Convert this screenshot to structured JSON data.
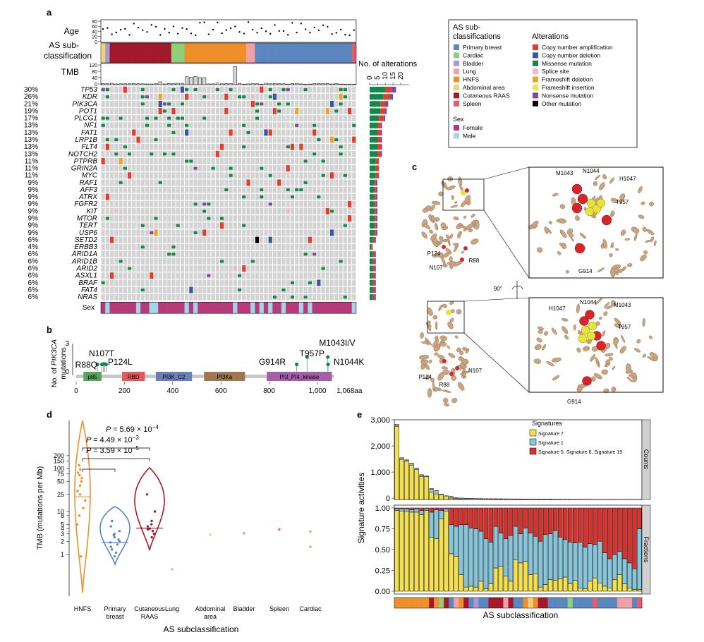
{
  "panel_letters": [
    "a",
    "b",
    "c",
    "d",
    "e"
  ],
  "colors": {
    "primary_breast": "#5b86c0",
    "cardiac": "#8fcf7a",
    "bladder": "#a899d0",
    "lung": "#f2a0a8",
    "hnfs": "#ef8f2a",
    "abdominal": "#efd27a",
    "cutaneous": "#a3182b",
    "spleen": "#e05f6b",
    "amp": "#e23d2d",
    "del": "#3a55a4",
    "missense": "#14884a",
    "splice": "#f3b5cf",
    "fs_del": "#f0a32a",
    "fs_ins": "#f4e04d",
    "nonsense": "#7b4b9b",
    "other": "#000000",
    "female": "#b43b78",
    "male": "#a5d3ea",
    "sig7": "#f4e04d",
    "sig1": "#86c6dc",
    "sig5": "#d9322e",
    "empty": "#d3d3d3"
  },
  "panel_a": {
    "age_label": "Age",
    "age_ticks": [
      "80",
      "60",
      "40",
      "20",
      "0"
    ],
    "ascls_label_1": "AS sub-",
    "ascls_label_2": "classification",
    "tmb_label": "TMB",
    "tmb_ticks": [
      "120",
      "80",
      "40",
      "0"
    ],
    "alterations_axis_label": "No. of alterations",
    "alterations_ticks": [
      "0",
      "5",
      "10",
      "15",
      "20"
    ],
    "sex_label": "Sex",
    "genes": [
      "TP53",
      "KDR",
      "PIK3CA",
      "POT1",
      "PLCG1",
      "NF1",
      "FAT1",
      "LRP1B",
      "FLT4",
      "NOTCH2",
      "PTPRB",
      "GRIN2A",
      "MYC",
      "RAF1",
      "AFF3",
      "ATRX",
      "FGFR2",
      "KIT",
      "MTOR",
      "TERT",
      "USP6",
      "SETD2",
      "ERBB3",
      "ARID1A",
      "ARID1B",
      "ARID2",
      "ASXL1",
      "BRAF",
      "FAT4",
      "NRAS"
    ],
    "percents": [
      "30%",
      "26%",
      "21%",
      "19%",
      "17%",
      "13%",
      "13%",
      "13%",
      "13%",
      "13%",
      "11%",
      "11%",
      "11%",
      "9%",
      "9%",
      "9%",
      "9%",
      "9%",
      "9%",
      "9%",
      "9%",
      "6%",
      "4%",
      "6%",
      "6%",
      "6%",
      "6%",
      "6%",
      "6%",
      "6%"
    ]
  },
  "legend": {
    "ascls_title_1": "AS sub-",
    "ascls_title_2": "classifications",
    "ascls_items": [
      "Primary breast",
      "Cardiac",
      "Bladder",
      "Lung",
      "HNFS",
      "Abdominal area",
      "Cutaneous RAAS",
      "Spleen"
    ],
    "alt_title": "Alterations",
    "alt_items": [
      "Copy number amplification",
      "Copy number deletion",
      "Missense mutation",
      "Splice site",
      "Frameshift deletion",
      "Frameshift insertion",
      "Nonsense mutation",
      "Other mutation"
    ],
    "sex_title": "Sex",
    "sex_items": [
      "Female",
      "Male"
    ]
  },
  "panel_b": {
    "ylabel_1": "No. of ",
    "ylabel_gene": "PIK3CA",
    "ylabel_2": "mutations",
    "y_ticks": [
      "3",
      "0"
    ],
    "x_ticks": [
      "0",
      "200",
      "400",
      "600",
      "800",
      "1,000"
    ],
    "end_label": "1,068aa",
    "domains": [
      "p85",
      "RBD",
      "PI3K_C2",
      "PI3Ka",
      "PI3_PI4_kinase"
    ],
    "mutations": [
      "R88Q",
      "N107T",
      "P124L",
      "G914R",
      "T957P",
      "M1043I/V",
      "N1044K"
    ]
  },
  "panel_c": {
    "labels_top_overview": [
      "P124",
      "R88",
      "N107"
    ],
    "labels_top_zoom": [
      "M1043",
      "N1044",
      "H1047",
      "T957",
      "G914"
    ],
    "rotation": "90°",
    "labels_bottom_overview": [
      "P124",
      "N107",
      "R88"
    ],
    "labels_bottom_zoom": [
      "H1047",
      "N1044",
      "M1043",
      "T957",
      "G914"
    ]
  },
  "chart_data": [
    {
      "type": "violin",
      "title": "",
      "xlabel": "AS subclassification",
      "ylabel": "TMB (mutations per Mb)",
      "yscale": "log",
      "y_ticks": [
        "1",
        "2",
        "3",
        "4",
        "5",
        "8",
        "10",
        "25",
        "50",
        "75",
        "100",
        "150",
        "200"
      ],
      "categories": [
        "HNFS",
        "Primary breast",
        "Cutaneous RAAS",
        "Lung",
        "Abdominal area",
        "Bladder",
        "Spleen",
        "Cardiac"
      ],
      "category_labels": [
        [
          "HNFS"
        ],
        [
          "Primary",
          "breast"
        ],
        [
          "Cutaneous",
          "RAAS"
        ],
        [
          "Lung"
        ],
        [
          "Abdominal",
          "area"
        ],
        [
          "Bladder"
        ],
        [
          "Spleen"
        ],
        [
          "Cardiac"
        ]
      ],
      "medians": {
        "HNFS": 22,
        "Primary breast": 1.9,
        "Cutaneous RAAS": 4.1
      },
      "points": {
        "HNFS": [
          120,
          95,
          80,
          70,
          60,
          50,
          40,
          30,
          25,
          18,
          12,
          8,
          5,
          0.9
        ],
        "Primary breast": [
          6,
          4.5,
          3.5,
          3,
          2.8,
          2.5,
          2.2,
          2,
          1.9,
          1.7,
          1.5,
          1.3,
          1.1,
          0.9
        ],
        "Cutaneous RAAS": [
          25,
          10,
          6,
          5,
          4.5,
          4,
          3.8,
          3.5,
          3,
          2.5
        ],
        "Lung": [
          0.45
        ],
        "Abdominal area": [
          2.9
        ],
        "Bladder": [
          3.1
        ],
        "Spleen": [
          3.8
        ],
        "Cardiac": [
          3.4,
          1.5
        ]
      },
      "annotations": [
        "P = 5.69 × 10^−4",
        "P = 4.49 × 10^−3",
        "P = 3.59 × 10^−5"
      ],
      "p_prefix": "P = ",
      "p_values": [
        {
          "m": "5.69 × 10",
          "e": "−4"
        },
        {
          "m": "4.49 × 10",
          "e": "−3"
        },
        {
          "m": "3.59 × 10",
          "e": "−5"
        }
      ]
    },
    {
      "type": "bar",
      "title": "",
      "xlabel": "AS subclassification",
      "ylabel": "Signature activities",
      "legend_title": "Signatures",
      "series_names": [
        "Signature 7",
        "Signature 1",
        "Signature 5, Signature 6, Signature 19"
      ],
      "facet_labels": [
        "Counts",
        "Fractions"
      ],
      "counts_ticks": [
        "3,000",
        "2,000",
        "1,000",
        "0"
      ],
      "counts_ylim": [
        0,
        3000
      ],
      "fraction_ticks": [
        "1.00",
        "0.75",
        "0.50",
        "0.25",
        "0.00"
      ],
      "counts_total": [
        2870,
        1600,
        1520,
        1380,
        1200,
        950,
        900,
        420,
        340,
        210,
        140,
        120,
        70,
        60,
        50,
        45,
        40,
        38,
        35,
        32,
        30,
        30,
        28,
        26,
        25,
        24,
        22,
        22,
        20,
        20,
        18,
        18,
        16,
        16,
        15,
        15,
        14,
        14,
        12,
        12,
        10,
        10,
        10,
        9,
        8,
        8,
        8,
        7,
        6,
        6
      ],
      "fraction_sig7": [
        0.97,
        0.96,
        0.96,
        0.95,
        0.95,
        0.92,
        0.97,
        0.65,
        0.63,
        0.87,
        0.96,
        0.45,
        0.42,
        0.2,
        0.05,
        0.06,
        0.05,
        0.12,
        0.03,
        0.09,
        0.28,
        0.3,
        0.18,
        0.12,
        0.38,
        0.34,
        0.36,
        0.2,
        0.21,
        0.05,
        0.08,
        0.14,
        0.13,
        0.15,
        0.17,
        0.09,
        0.13,
        0.04,
        0.03,
        0.12,
        0.16,
        0.1,
        0.06,
        0.04,
        0.14,
        0.2,
        0.09,
        0.04,
        0.02,
        0.02
      ],
      "fraction_sig1": [
        0.02,
        0.03,
        0.03,
        0.03,
        0.04,
        0.05,
        0.02,
        0.3,
        0.35,
        0.1,
        0.03,
        0.35,
        0.36,
        0.6,
        0.75,
        0.7,
        0.7,
        0.6,
        0.6,
        0.5,
        0.5,
        0.4,
        0.45,
        0.55,
        0.4,
        0.35,
        0.4,
        0.5,
        0.45,
        0.55,
        0.6,
        0.55,
        0.6,
        0.5,
        0.45,
        0.5,
        0.45,
        0.55,
        0.5,
        0.45,
        0.4,
        0.5,
        0.4,
        0.35,
        0.3,
        0.28,
        0.3,
        0.3,
        0.25,
        0.73
      ]
    }
  ]
}
